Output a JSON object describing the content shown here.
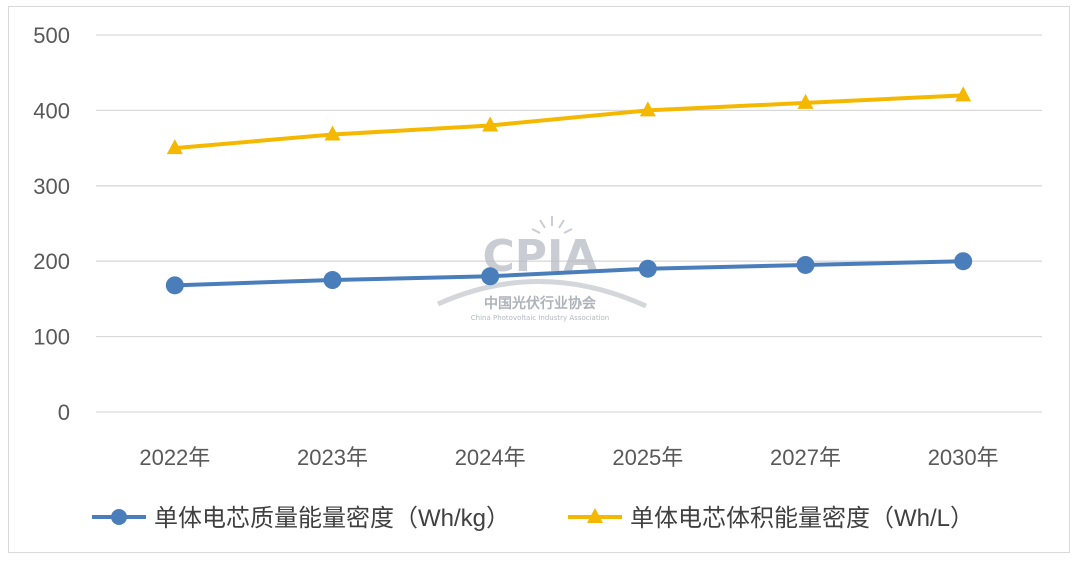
{
  "chart_data": {
    "type": "line",
    "categories": [
      "2022年",
      "2023年",
      "2024年",
      "2025年",
      "2027年",
      "2030年"
    ],
    "ylim": [
      0,
      500
    ],
    "yticks": [
      "500",
      "400",
      "300",
      "200",
      "100",
      "0"
    ],
    "grid": true,
    "legend_position": "bottom",
    "series": [
      {
        "name": "单体电芯质量能量密度（Wh/kg）",
        "values": [
          168,
          175,
          180,
          190,
          195,
          200
        ],
        "color": "#4a7ebb",
        "marker": "circle"
      },
      {
        "name": "单体电芯体积能量密度（Wh/L）",
        "values": [
          350,
          368,
          380,
          400,
          410,
          420
        ],
        "color": "#f5b800",
        "marker": "triangle"
      }
    ]
  },
  "watermark": {
    "logo_text": "CPIA",
    "name_cn": "中国光伏行业协会",
    "name_en": "China Photovoltaic Industry Association"
  }
}
